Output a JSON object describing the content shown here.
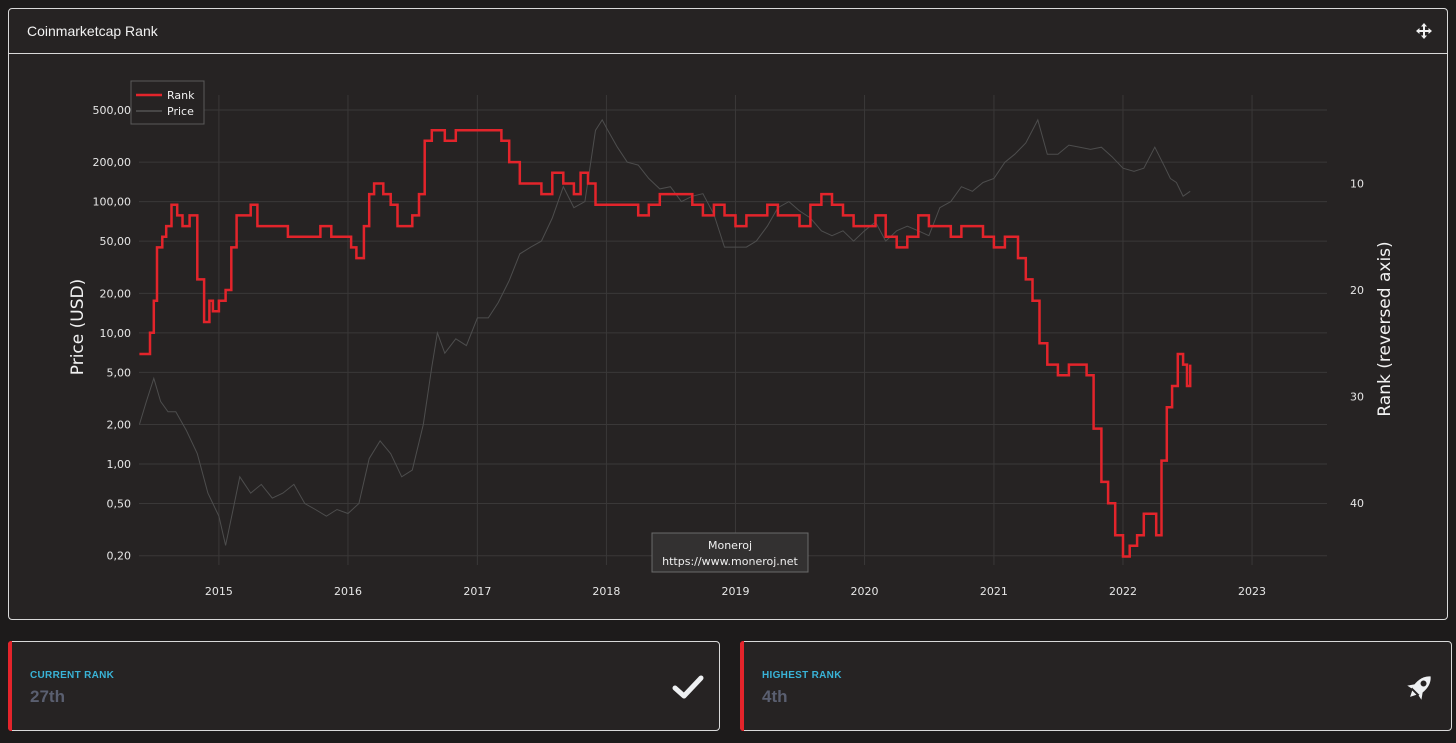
{
  "panel": {
    "title": "Coinmarketcap Rank",
    "move_icon": "move-arrows-icon"
  },
  "watermark": {
    "line1": "Moneroj",
    "line2": "https://www.moneroj.net"
  },
  "colors": {
    "rank": "#e3242b",
    "price": "#4d4d4d",
    "accent": "#39b3d7"
  },
  "chart_data": {
    "type": "line",
    "title": "",
    "xlabel": "",
    "ylabel_left": "Price (USD)",
    "ylabel_right": "Rank (reversed axis)",
    "x_ticks": [
      "2015",
      "2016",
      "2017",
      "2018",
      "2019",
      "2020",
      "2021",
      "2022",
      "2023"
    ],
    "y_left_scale": "log",
    "y_left_ticks": [
      "0,20",
      "0,50",
      "1,00",
      "2,00",
      "5,00",
      "10,00",
      "20,00",
      "50,00",
      "100,00",
      "200,00",
      "500,00"
    ],
    "y_left_range": [
      0.17,
      650
    ],
    "y_right_reversed": true,
    "y_right_ticks": [
      10,
      20,
      30,
      40
    ],
    "y_right_range": [
      45.8,
      1.7
    ],
    "x_range": [
      "2014-05-20",
      "2023-08-01"
    ],
    "grid": true,
    "legend_position": "top-left",
    "series": [
      {
        "name": "Rank",
        "axis": "right",
        "x": [
          "2014-05-21",
          "2014-06-10",
          "2014-06-20",
          "2014-07-01",
          "2014-07-10",
          "2014-07-25",
          "2014-08-05",
          "2014-08-20",
          "2014-09-05",
          "2014-09-20",
          "2014-10-10",
          "2014-11-01",
          "2014-11-20",
          "2014-12-05",
          "2014-12-15",
          "2015-01-01",
          "2015-01-20",
          "2015-02-05",
          "2015-02-20",
          "2015-03-15",
          "2015-04-01",
          "2015-04-20",
          "2015-05-15",
          "2015-06-15",
          "2015-07-15",
          "2015-08-15",
          "2015-09-15",
          "2015-10-15",
          "2015-11-15",
          "2015-12-15",
          "2016-01-10",
          "2016-01-25",
          "2016-02-15",
          "2016-03-01",
          "2016-03-15",
          "2016-04-10",
          "2016-05-01",
          "2016-05-20",
          "2016-06-10",
          "2016-07-01",
          "2016-07-20",
          "2016-08-05",
          "2016-08-25",
          "2016-10-01",
          "2016-11-01",
          "2016-12-01",
          "2017-01-01",
          "2017-02-01",
          "2017-02-25",
          "2017-03-10",
          "2017-04-01",
          "2017-05-01",
          "2017-06-01",
          "2017-07-01",
          "2017-08-01",
          "2017-09-01",
          "2017-10-01",
          "2017-10-20",
          "2017-11-10",
          "2017-12-01",
          "2018-01-10",
          "2018-02-01",
          "2018-03-01",
          "2018-04-01",
          "2018-05-01",
          "2018-06-01",
          "2018-07-01",
          "2018-08-01",
          "2018-09-01",
          "2018-10-01",
          "2018-11-01",
          "2018-12-01",
          "2019-01-01",
          "2019-02-01",
          "2019-03-01",
          "2019-04-01",
          "2019-05-01",
          "2019-06-01",
          "2019-07-01",
          "2019-08-01",
          "2019-09-01",
          "2019-10-01",
          "2019-11-01",
          "2019-12-01",
          "2020-01-01",
          "2020-02-01",
          "2020-03-01",
          "2020-04-01",
          "2020-05-01",
          "2020-06-01",
          "2020-07-01",
          "2020-08-01",
          "2020-09-01",
          "2020-10-01",
          "2020-11-01",
          "2020-12-01",
          "2021-01-01",
          "2021-02-01",
          "2021-02-20",
          "2021-03-10",
          "2021-04-01",
          "2021-04-20",
          "2021-05-10",
          "2021-06-01",
          "2021-07-01",
          "2021-08-01",
          "2021-09-01",
          "2021-09-20",
          "2021-10-10",
          "2021-11-01",
          "2021-11-20",
          "2021-12-10",
          "2022-01-01",
          "2022-01-20",
          "2022-02-10",
          "2022-03-01",
          "2022-03-20",
          "2022-04-05",
          "2022-04-20",
          "2022-05-05",
          "2022-05-20",
          "2022-06-05",
          "2022-06-20",
          "2022-07-01",
          "2022-07-10"
        ],
        "values": [
          26,
          26,
          24,
          21,
          16,
          15,
          14,
          12,
          13,
          14,
          13,
          19,
          23,
          21,
          22,
          21,
          20,
          16,
          13,
          13,
          12,
          14,
          14,
          14,
          15,
          15,
          15,
          14,
          15,
          15,
          16,
          17,
          14,
          11,
          10,
          11,
          12,
          14,
          14,
          13,
          11,
          6,
          5,
          6,
          5,
          5,
          5,
          5,
          5,
          6,
          8,
          10,
          10,
          11,
          9,
          10,
          11,
          9,
          10,
          12,
          12,
          12,
          12,
          13,
          12,
          11,
          11,
          11,
          12,
          13,
          12,
          13,
          14,
          13,
          13,
          12,
          13,
          13,
          14,
          12,
          11,
          12,
          13,
          14,
          14,
          13,
          15,
          16,
          15,
          13,
          14,
          14,
          15,
          14,
          14,
          15,
          16,
          15,
          15,
          17,
          19,
          21,
          25,
          27,
          28,
          27,
          27,
          28,
          33,
          38,
          40,
          43,
          45,
          44,
          43,
          41,
          41,
          43,
          36,
          31,
          29,
          26,
          27,
          29,
          27
        ]
      },
      {
        "name": "Price",
        "axis": "left",
        "x": [
          "2014-05-21",
          "2014-06-10",
          "2014-07-01",
          "2014-07-20",
          "2014-08-10",
          "2014-09-01",
          "2014-10-01",
          "2014-11-01",
          "2014-12-01",
          "2015-01-01",
          "2015-01-20",
          "2015-02-10",
          "2015-03-01",
          "2015-04-01",
          "2015-05-01",
          "2015-06-01",
          "2015-07-01",
          "2015-08-01",
          "2015-09-01",
          "2015-10-01",
          "2015-11-01",
          "2015-12-01",
          "2016-01-01",
          "2016-02-01",
          "2016-03-01",
          "2016-04-01",
          "2016-05-01",
          "2016-06-01",
          "2016-07-01",
          "2016-08-01",
          "2016-08-25",
          "2016-09-10",
          "2016-10-01",
          "2016-11-01",
          "2016-12-01",
          "2017-01-01",
          "2017-02-01",
          "2017-03-01",
          "2017-04-01",
          "2017-05-01",
          "2017-06-01",
          "2017-07-01",
          "2017-08-01",
          "2017-09-01",
          "2017-10-01",
          "2017-11-01",
          "2017-12-01",
          "2017-12-20",
          "2018-01-05",
          "2018-02-01",
          "2018-03-01",
          "2018-04-01",
          "2018-05-01",
          "2018-06-01",
          "2018-07-01",
          "2018-08-01",
          "2018-09-01",
          "2018-10-01",
          "2018-11-01",
          "2018-12-01",
          "2019-01-01",
          "2019-02-01",
          "2019-03-01",
          "2019-04-01",
          "2019-05-01",
          "2019-06-01",
          "2019-07-01",
          "2019-08-01",
          "2019-09-01",
          "2019-10-01",
          "2019-11-01",
          "2019-12-01",
          "2020-01-01",
          "2020-02-01",
          "2020-03-01",
          "2020-04-01",
          "2020-05-01",
          "2020-06-01",
          "2020-07-01",
          "2020-08-01",
          "2020-09-01",
          "2020-10-01",
          "2020-11-01",
          "2020-12-01",
          "2021-01-01",
          "2021-02-01",
          "2021-03-01",
          "2021-04-01",
          "2021-05-05",
          "2021-06-01",
          "2021-07-01",
          "2021-08-01",
          "2021-09-01",
          "2021-10-01",
          "2021-11-01",
          "2021-12-01",
          "2022-01-01",
          "2022-02-01",
          "2022-03-01",
          "2022-04-01",
          "2022-05-01",
          "2022-05-15",
          "2022-06-01",
          "2022-06-20",
          "2022-07-10"
        ],
        "values": [
          2,
          3,
          4.5,
          3,
          2.5,
          2.5,
          1.8,
          1.2,
          0.6,
          0.4,
          0.24,
          0.45,
          0.8,
          0.6,
          0.7,
          0.55,
          0.6,
          0.7,
          0.5,
          0.45,
          0.4,
          0.45,
          0.42,
          0.5,
          1.1,
          1.5,
          1.2,
          0.8,
          0.9,
          2,
          5.5,
          10,
          7,
          9,
          8,
          13,
          13,
          17,
          25,
          40,
          45,
          50,
          75,
          130,
          90,
          100,
          350,
          420,
          350,
          260,
          200,
          190,
          150,
          125,
          130,
          100,
          110,
          115,
          80,
          45,
          45,
          45,
          50,
          65,
          90,
          100,
          85,
          75,
          60,
          55,
          60,
          50,
          60,
          70,
          50,
          60,
          65,
          60,
          55,
          90,
          100,
          130,
          120,
          140,
          150,
          200,
          230,
          280,
          420,
          230,
          230,
          270,
          260,
          250,
          260,
          220,
          180,
          170,
          180,
          260,
          180,
          150,
          140,
          110,
          120
        ]
      }
    ]
  },
  "stats": {
    "current": {
      "label": "CURRENT RANK",
      "value": "27th",
      "icon": "checkmark-icon"
    },
    "highest": {
      "label": "HIGHEST RANK",
      "value": "4th",
      "icon": "rocket-icon"
    }
  }
}
